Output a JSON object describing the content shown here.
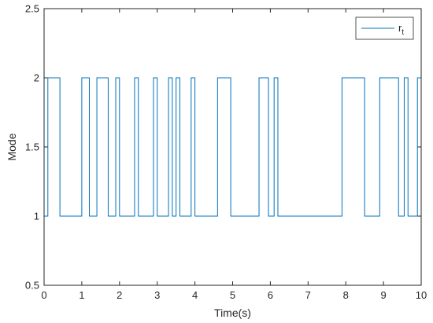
{
  "chart_data": {
    "type": "line",
    "title": "",
    "xlabel": "Time(s)",
    "ylabel": "Mode",
    "xlim": [
      0,
      10
    ],
    "ylim": [
      0.5,
      2.5
    ],
    "xticks": [
      0,
      1,
      2,
      3,
      4,
      5,
      6,
      7,
      8,
      9,
      10
    ],
    "yticks": [
      0.5,
      1,
      1.5,
      2,
      2.5
    ],
    "xtick_labels": [
      "0",
      "1",
      "2",
      "3",
      "4",
      "5",
      "6",
      "7",
      "8",
      "9",
      "10"
    ],
    "ytick_labels": [
      "0.5",
      "1",
      "1.5",
      "2",
      "2.5"
    ],
    "grid": false,
    "legend": {
      "position": "top-right",
      "entries": [
        {
          "label_main": "r",
          "label_sub": "t"
        }
      ]
    },
    "series": [
      {
        "name": "r_t",
        "color": "#0072BD",
        "step": true,
        "x": [
          0,
          0.1,
          0.42,
          1.0,
          1.2,
          1.4,
          1.7,
          1.9,
          2.0,
          2.4,
          2.5,
          2.9,
          3.0,
          3.3,
          3.4,
          3.5,
          3.6,
          3.9,
          4.0,
          4.6,
          4.95,
          5.7,
          5.95,
          6.1,
          6.2,
          7.9,
          8.5,
          8.9,
          9.4,
          9.55,
          9.65,
          9.9,
          10.0
        ],
        "y": [
          1,
          2,
          1,
          2,
          1,
          2,
          1,
          2,
          1,
          2,
          1,
          2,
          1,
          2,
          1,
          2,
          1,
          2,
          1,
          2,
          1,
          2,
          1,
          2,
          1,
          2,
          1,
          2,
          1,
          2,
          1,
          2,
          2
        ]
      }
    ]
  }
}
